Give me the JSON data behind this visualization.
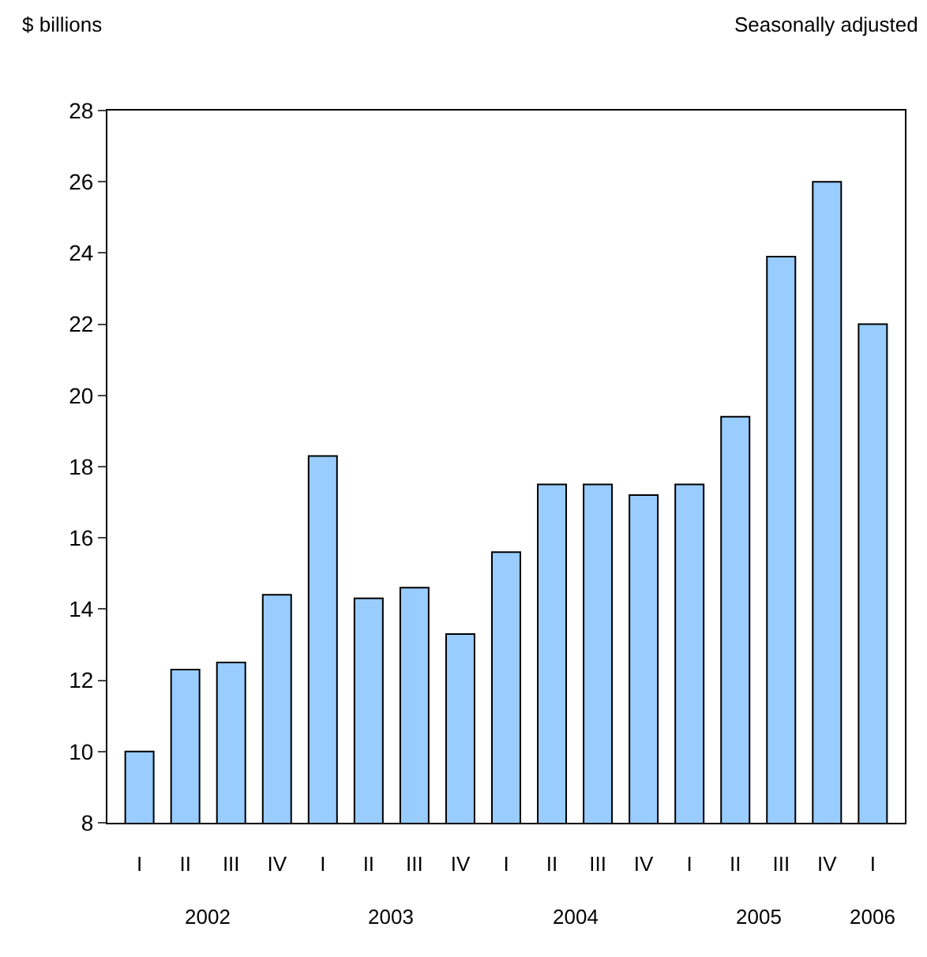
{
  "chart_data": {
    "type": "bar",
    "ylabel": "$ billions",
    "categories": [
      "I",
      "II",
      "III",
      "IV",
      "I",
      "II",
      "III",
      "IV",
      "I",
      "II",
      "III",
      "IV",
      "I",
      "II",
      "III",
      "IV",
      "I"
    ],
    "series": [
      {
        "color": "#99ccff",
        "values": [
          10.0,
          12.3,
          12.5,
          14.4,
          18.3,
          14.3,
          14.6,
          13.3,
          15.6,
          17.5,
          17.5,
          17.2,
          17.5,
          19.4,
          23.9,
          26.0,
          22.0
        ]
      }
    ],
    "ylim": [
      8,
      28
    ],
    "yticks": [
      8,
      10,
      12,
      14,
      16,
      18,
      20,
      22,
      24,
      26,
      28
    ],
    "annotations": [
      "Seasonally adjusted",
      "2002",
      "2003",
      "2004",
      "2005",
      "2006"
    ]
  }
}
